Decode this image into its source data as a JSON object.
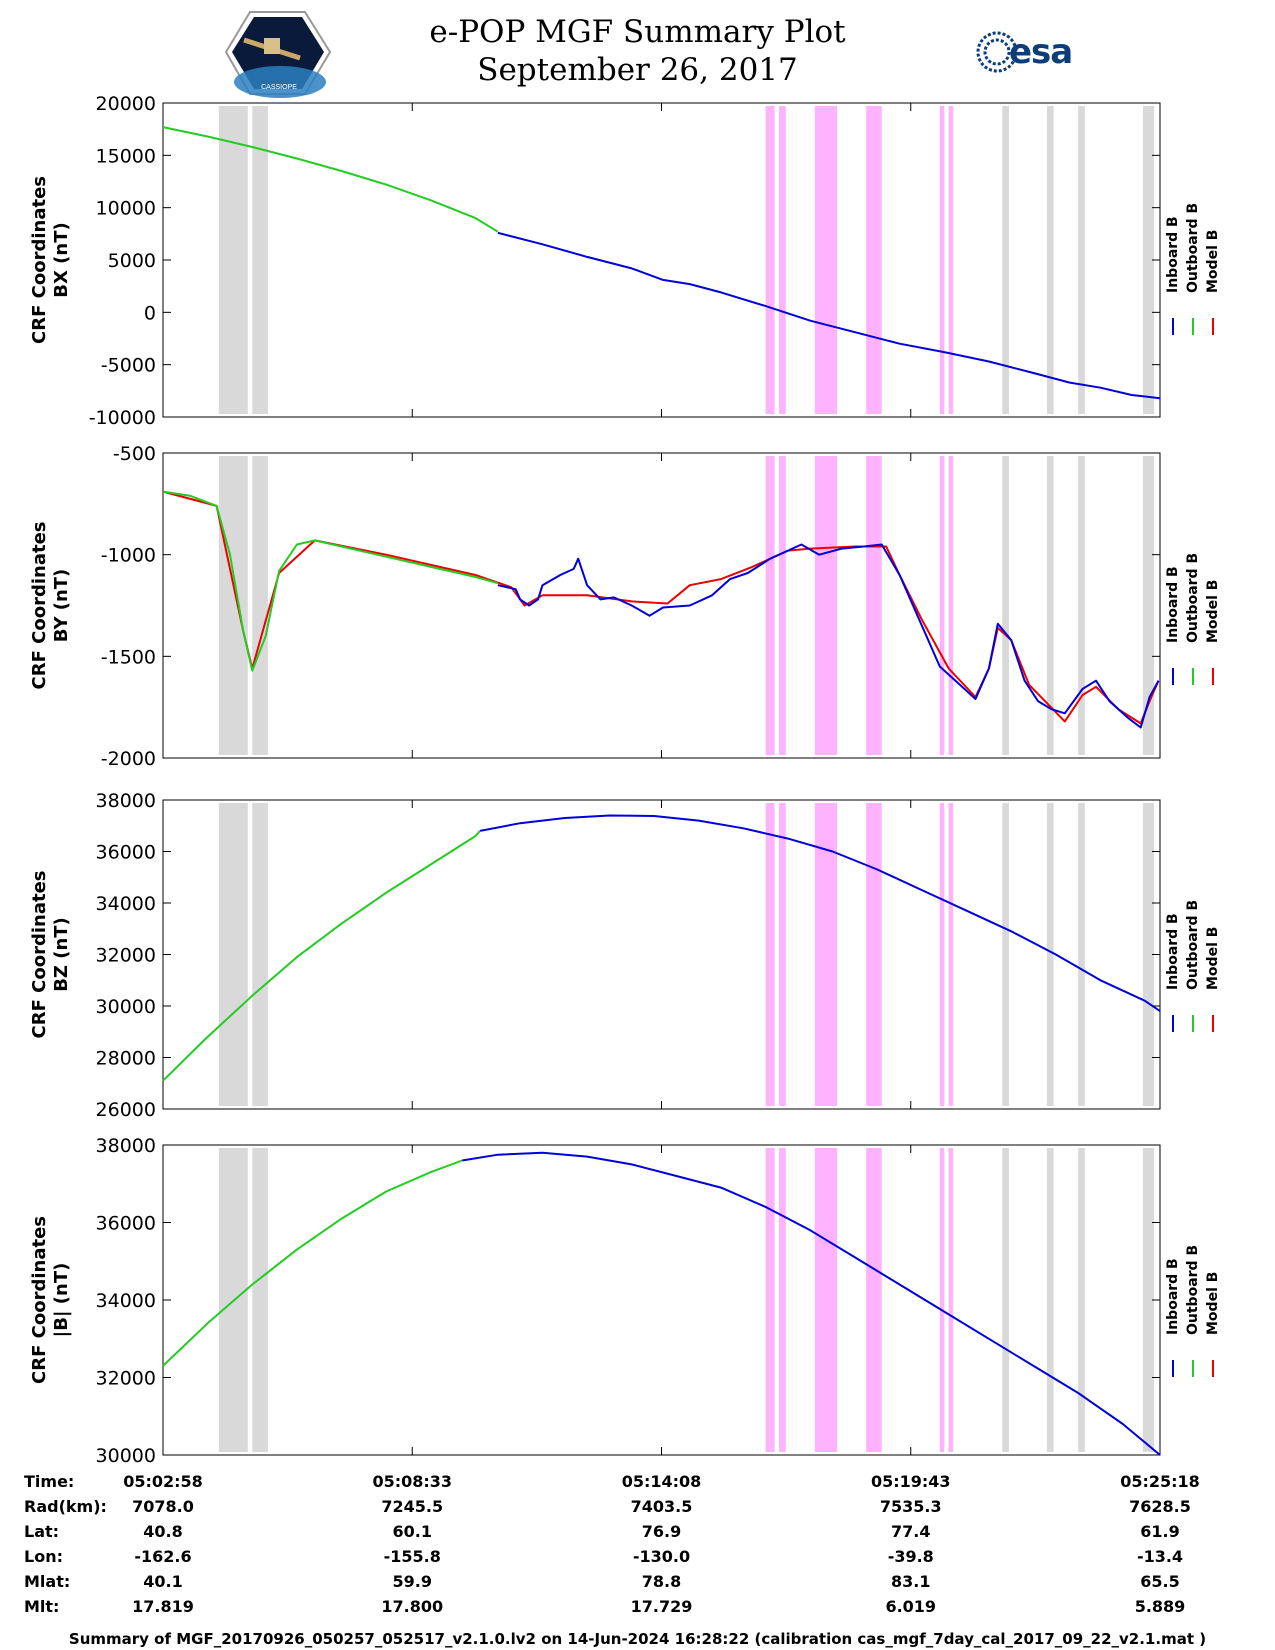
{
  "header": {
    "title": "e-POP MGF Summary Plot",
    "date": "September 26, 2017",
    "logo_text": "CASSIOPE",
    "esa_text": "esa"
  },
  "colors": {
    "inboard": "#0000dd",
    "outboard": "#22cc22",
    "model": "#ee0000",
    "gray_band": "#d9d9d9",
    "pink_band": "#ffb3ff"
  },
  "legend": [
    "Inboard B",
    "Outboard B",
    "Model B"
  ],
  "chart_data": {
    "type": "line",
    "x_ticks": [
      "05:02:58",
      "05:08:33",
      "05:14:08",
      "05:19:43",
      "05:25:18"
    ],
    "x_range_minutes": [
      0,
      22.333
    ],
    "gray_bands": [
      [
        1.25,
        1.9
      ],
      [
        2.0,
        2.35
      ],
      [
        18.8,
        18.95
      ],
      [
        19.8,
        19.95
      ],
      [
        20.5,
        20.65
      ],
      [
        21.95,
        22.2
      ]
    ],
    "pink_bands": [
      [
        13.5,
        13.7
      ],
      [
        13.8,
        13.95
      ],
      [
        14.6,
        15.1
      ],
      [
        15.75,
        16.1
      ],
      [
        17.4,
        17.5
      ],
      [
        17.6,
        17.7
      ]
    ],
    "panels": [
      {
        "ylabel_line1": "CRF Coordinates",
        "ylabel_line2": "BX (nT)",
        "ylim": [
          -10000,
          20000
        ],
        "yticks": [
          "20000",
          "15000",
          "10000",
          "5000",
          "0",
          "-5000",
          "-10000"
        ],
        "ytick_values": [
          20000,
          15000,
          10000,
          5000,
          0,
          -5000,
          -10000
        ],
        "inboard": [
          [
            7.5,
            7600
          ],
          [
            8.5,
            6500
          ],
          [
            9.5,
            5300
          ],
          [
            10.5,
            4200
          ],
          [
            11.2,
            3100
          ],
          [
            11.8,
            2700
          ],
          [
            12.5,
            1900
          ],
          [
            13.5,
            600
          ],
          [
            14.5,
            -800
          ],
          [
            15.5,
            -1900
          ],
          [
            16.5,
            -3000
          ],
          [
            17.5,
            -3800
          ],
          [
            18.5,
            -4700
          ],
          [
            19.5,
            -5800
          ],
          [
            20.3,
            -6700
          ],
          [
            21.0,
            -7200
          ],
          [
            21.7,
            -7900
          ],
          [
            22.333,
            -8200
          ]
        ],
        "outboard": [
          [
            0,
            17700
          ],
          [
            1,
            16800
          ],
          [
            2,
            15800
          ],
          [
            3,
            14700
          ],
          [
            4,
            13500
          ],
          [
            5,
            12200
          ],
          [
            6,
            10700
          ],
          [
            7,
            9000
          ],
          [
            7.5,
            7700
          ]
        ],
        "model": []
      },
      {
        "ylabel_line1": "CRF Coordinates",
        "ylabel_line2": "BY (nT)",
        "ylim": [
          -2000,
          -500
        ],
        "yticks": [
          "-500",
          "-1000",
          "-1500",
          "-2000"
        ],
        "ytick_values": [
          -500,
          -1000,
          -1500,
          -2000
        ],
        "inboard": [
          [
            7.5,
            -1150
          ],
          [
            7.9,
            -1170
          ],
          [
            8.0,
            -1220
          ],
          [
            8.2,
            -1250
          ],
          [
            8.4,
            -1220
          ],
          [
            8.5,
            -1150
          ],
          [
            8.9,
            -1100
          ],
          [
            9.2,
            -1070
          ],
          [
            9.3,
            -1020
          ],
          [
            9.5,
            -1150
          ],
          [
            9.8,
            -1220
          ],
          [
            10.1,
            -1210
          ],
          [
            10.5,
            -1250
          ],
          [
            10.9,
            -1300
          ],
          [
            11.2,
            -1260
          ],
          [
            11.8,
            -1250
          ],
          [
            12.3,
            -1200
          ],
          [
            12.7,
            -1120
          ],
          [
            13.1,
            -1090
          ],
          [
            13.6,
            -1020
          ],
          [
            14.0,
            -980
          ],
          [
            14.3,
            -950
          ],
          [
            14.7,
            -1000
          ],
          [
            15.2,
            -970
          ],
          [
            15.7,
            -960
          ],
          [
            16.1,
            -950
          ],
          [
            16.5,
            -1100
          ],
          [
            16.9,
            -1300
          ],
          [
            17.4,
            -1550
          ],
          [
            17.9,
            -1650
          ],
          [
            18.2,
            -1710
          ],
          [
            18.5,
            -1560
          ],
          [
            18.7,
            -1340
          ],
          [
            19.0,
            -1420
          ],
          [
            19.3,
            -1620
          ],
          [
            19.6,
            -1720
          ],
          [
            19.9,
            -1760
          ],
          [
            20.2,
            -1780
          ],
          [
            20.6,
            -1660
          ],
          [
            20.9,
            -1620
          ],
          [
            21.2,
            -1720
          ],
          [
            21.6,
            -1800
          ],
          [
            21.9,
            -1850
          ],
          [
            22.1,
            -1700
          ],
          [
            22.3,
            -1620
          ]
        ],
        "outboard": [
          [
            0,
            -690
          ],
          [
            0.6,
            -710
          ],
          [
            1.2,
            -760
          ],
          [
            1.5,
            -1000
          ],
          [
            1.8,
            -1380
          ],
          [
            2.0,
            -1570
          ],
          [
            2.3,
            -1400
          ],
          [
            2.6,
            -1080
          ],
          [
            3.0,
            -950
          ],
          [
            3.4,
            -930
          ],
          [
            4.0,
            -960
          ],
          [
            5.0,
            -1010
          ],
          [
            6.0,
            -1060
          ],
          [
            7.0,
            -1110
          ],
          [
            7.5,
            -1140
          ]
        ],
        "model": [
          [
            0,
            -690
          ],
          [
            1.2,
            -760
          ],
          [
            1.8,
            -1380
          ],
          [
            2.0,
            -1560
          ],
          [
            2.6,
            -1090
          ],
          [
            3.4,
            -930
          ],
          [
            5.0,
            -1000
          ],
          [
            7.0,
            -1100
          ],
          [
            7.8,
            -1160
          ],
          [
            8.1,
            -1250
          ],
          [
            8.5,
            -1200
          ],
          [
            9.5,
            -1200
          ],
          [
            10.5,
            -1230
          ],
          [
            11.3,
            -1240
          ],
          [
            11.8,
            -1150
          ],
          [
            12.5,
            -1120
          ],
          [
            13.2,
            -1060
          ],
          [
            14.0,
            -980
          ],
          [
            14.5,
            -970
          ],
          [
            15.5,
            -960
          ],
          [
            16.2,
            -960
          ],
          [
            16.5,
            -1100
          ],
          [
            17.0,
            -1320
          ],
          [
            17.6,
            -1560
          ],
          [
            18.2,
            -1700
          ],
          [
            18.5,
            -1560
          ],
          [
            18.7,
            -1360
          ],
          [
            19.0,
            -1420
          ],
          [
            19.4,
            -1640
          ],
          [
            20.2,
            -1820
          ],
          [
            20.6,
            -1690
          ],
          [
            20.9,
            -1650
          ],
          [
            21.4,
            -1760
          ],
          [
            21.9,
            -1830
          ],
          [
            22.1,
            -1720
          ],
          [
            22.3,
            -1620
          ]
        ]
      },
      {
        "ylabel_line1": "CRF Coordinates",
        "ylabel_line2": "BZ (nT)",
        "ylim": [
          26000,
          38000
        ],
        "yticks": [
          "38000",
          "36000",
          "34000",
          "32000",
          "30000",
          "28000",
          "26000"
        ],
        "ytick_values": [
          38000,
          36000,
          34000,
          32000,
          30000,
          28000,
          26000
        ],
        "inboard": [
          [
            7.1,
            36800
          ],
          [
            8,
            37100
          ],
          [
            9,
            37300
          ],
          [
            10,
            37400
          ],
          [
            11,
            37380
          ],
          [
            12,
            37200
          ],
          [
            13,
            36900
          ],
          [
            14,
            36500
          ],
          [
            15,
            36000
          ],
          [
            16,
            35300
          ],
          [
            17,
            34500
          ],
          [
            18,
            33700
          ],
          [
            19,
            32900
          ],
          [
            20,
            32000
          ],
          [
            21,
            31000
          ],
          [
            22,
            30200
          ],
          [
            22.333,
            29800
          ]
        ],
        "outboard": [
          [
            0,
            27100
          ],
          [
            1,
            28800
          ],
          [
            2,
            30400
          ],
          [
            3,
            31900
          ],
          [
            4,
            33200
          ],
          [
            5,
            34400
          ],
          [
            6,
            35500
          ],
          [
            7,
            36600
          ],
          [
            7.1,
            36800
          ]
        ],
        "model": []
      },
      {
        "ylabel_line1": "CRF Coordinates",
        "ylabel_line2": "|B| (nT)",
        "ylim": [
          30000,
          38000
        ],
        "yticks": [
          "38000",
          "36000",
          "34000",
          "32000",
          "30000"
        ],
        "ytick_values": [
          38000,
          36000,
          34000,
          32000,
          30000
        ],
        "inboard": [
          [
            6.7,
            37600
          ],
          [
            7.5,
            37750
          ],
          [
            8.5,
            37800
          ],
          [
            9.5,
            37700
          ],
          [
            10.5,
            37500
          ],
          [
            11.5,
            37200
          ],
          [
            12.5,
            36900
          ],
          [
            13.5,
            36400
          ],
          [
            14.5,
            35800
          ],
          [
            15.5,
            35100
          ],
          [
            16.5,
            34400
          ],
          [
            17.5,
            33700
          ],
          [
            18.5,
            33000
          ],
          [
            19.5,
            32300
          ],
          [
            20.5,
            31600
          ],
          [
            21.5,
            30800
          ],
          [
            22.333,
            30000
          ]
        ],
        "outboard": [
          [
            0,
            32300
          ],
          [
            1,
            33400
          ],
          [
            2,
            34400
          ],
          [
            3,
            35300
          ],
          [
            4,
            36100
          ],
          [
            5,
            36800
          ],
          [
            6,
            37300
          ],
          [
            6.7,
            37600
          ]
        ],
        "model": []
      }
    ],
    "ephemeris": {
      "labels": [
        "Time:",
        "Rad(km):",
        "Lat:",
        "Lon:",
        "Mlat:",
        "Mlt:"
      ],
      "columns": [
        [
          "05:02:58",
          "7078.0",
          "40.8",
          "-162.6",
          "40.1",
          "17.819"
        ],
        [
          "05:08:33",
          "7245.5",
          "60.1",
          "-155.8",
          "59.9",
          "17.800"
        ],
        [
          "05:14:08",
          "7403.5",
          "76.9",
          "-130.0",
          "78.8",
          "17.729"
        ],
        [
          "05:19:43",
          "7535.3",
          "77.4",
          "-39.8",
          "83.1",
          "6.019"
        ],
        [
          "05:25:18",
          "7628.5",
          "61.9",
          "-13.4",
          "65.5",
          "5.889"
        ]
      ]
    }
  },
  "footer": "Summary of MGF_20170926_050257_052517_v2.1.0.lv2 on 14-Jun-2024 16:28:22 (calibration cas_mgf_7day_cal_2017_09_22_v2.1.mat )"
}
